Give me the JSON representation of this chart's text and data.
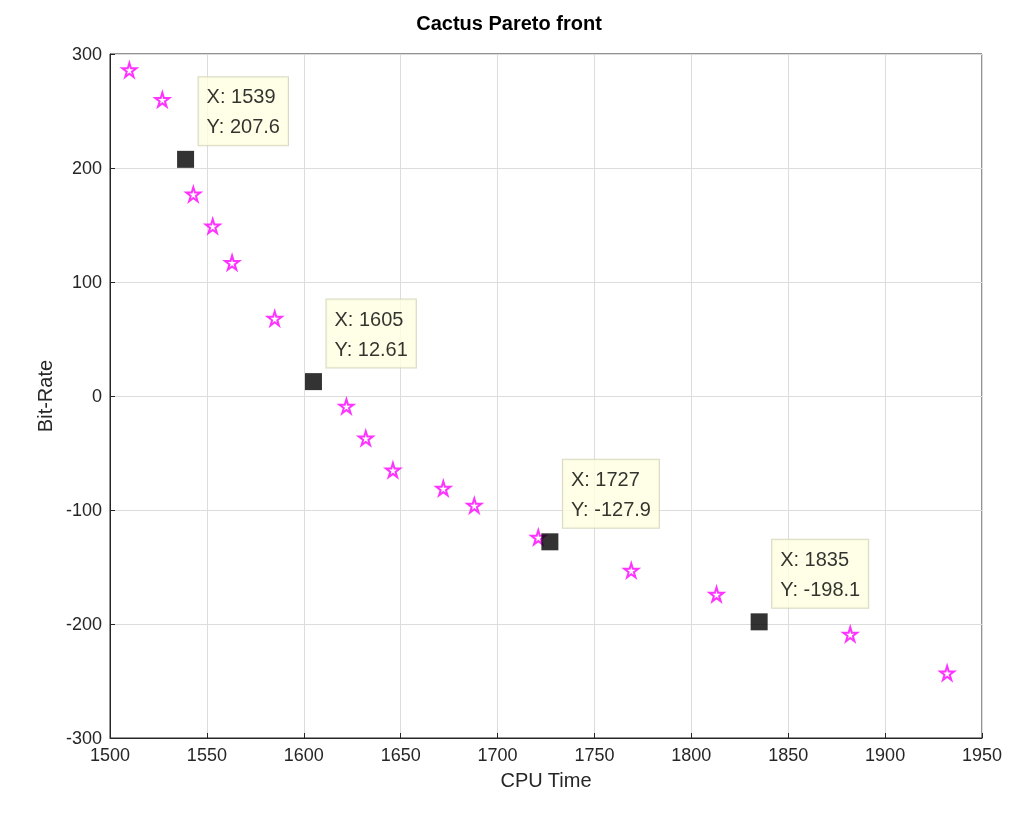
{
  "chart_data": {
    "type": "scatter",
    "title": "Cactus Pareto front",
    "xlabel": "CPU Time",
    "ylabel": "Bit-Rate",
    "series": [
      {
        "color": "#ff00ff",
        "marker": "star",
        "x": [
          1510,
          1527,
          1543,
          1553,
          1563,
          1585,
          1622,
          1632,
          1646,
          1672,
          1688,
          1721,
          1769,
          1813,
          1882,
          1932
        ],
        "values": [
          286,
          260,
          177,
          149,
          117,
          68,
          -9,
          -37,
          -65,
          -81,
          -96,
          -124,
          -153,
          -174,
          -209,
          -243
        ]
      },
      {
        "color": "#000000",
        "marker": "square",
        "x": [
          1539,
          1605,
          1727,
          1835
        ],
        "values": [
          207.6,
          12.61,
          -127.9,
          -198.1
        ]
      }
    ],
    "annotations": [
      {
        "text": "X: 1539\nY: 207.6",
        "x": 1539,
        "y": 207.6
      },
      {
        "text": "X: 1605\nY: 12.61",
        "x": 1605,
        "y": 12.61
      },
      {
        "text": "X: 1727\nY: -127.9",
        "x": 1727,
        "y": -127.9
      },
      {
        "text": "X: 1835\nY: -198.1",
        "x": 1835,
        "y": -198.1
      }
    ],
    "xlim": [
      1500,
      1950
    ],
    "xticks": [
      1500,
      1550,
      1600,
      1650,
      1700,
      1750,
      1800,
      1850,
      1900,
      1950
    ],
    "ylim": [
      -300,
      300
    ],
    "yticks": [
      -300,
      -200,
      -100,
      0,
      100,
      200,
      300
    ],
    "grid": true
  }
}
